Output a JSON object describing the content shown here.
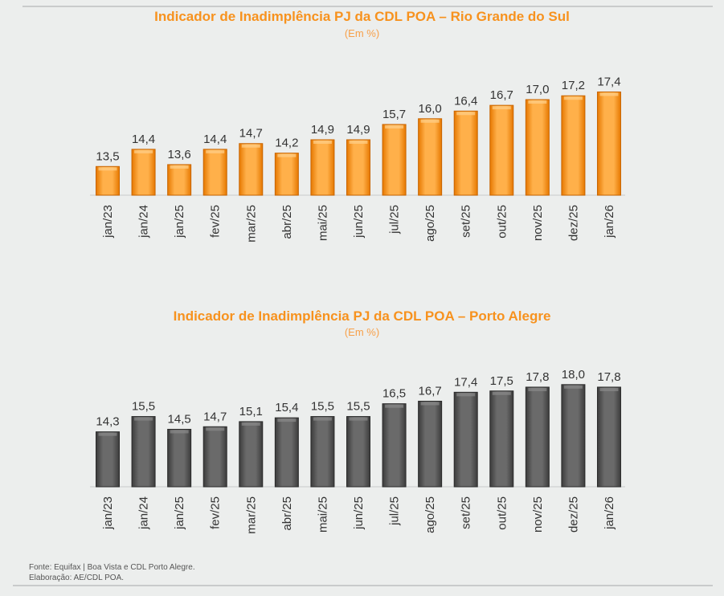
{
  "chart_data": [
    {
      "type": "bar",
      "title": "Indicador de Inadimplência PJ da CDL POA – Rio Grande do Sul",
      "subtitle": "(Em %)",
      "categories": [
        "jan/23",
        "jan/24",
        "jan/25",
        "fev/25",
        "mar/25",
        "abr/25",
        "mai/25",
        "jun/25",
        "jul/25",
        "ago/25",
        "set/25",
        "out/25",
        "nov/25",
        "dez/25",
        "jan/26"
      ],
      "values": [
        13.5,
        14.4,
        13.6,
        14.4,
        14.7,
        14.2,
        14.9,
        14.9,
        15.7,
        16.0,
        16.4,
        16.7,
        17.0,
        17.2,
        17.4
      ],
      "value_labels": [
        "13,5",
        "14,4",
        "13,6",
        "14,4",
        "14,7",
        "14,2",
        "14,9",
        "14,9",
        "15,7",
        "16,0",
        "16,4",
        "16,7",
        "17,0",
        "17,2",
        "17,4"
      ],
      "ylim": [
        12,
        18
      ],
      "grid": false,
      "color": "#f7921e"
    },
    {
      "type": "bar",
      "title": "Indicador de Inadimplência PJ da CDL POA – Porto Alegre",
      "subtitle": "(Em %)",
      "categories": [
        "jan/23",
        "jan/24",
        "jan/25",
        "fev/25",
        "mar/25",
        "abr/25",
        "mai/25",
        "jun/25",
        "jul/25",
        "ago/25",
        "set/25",
        "out/25",
        "nov/25",
        "dez/25",
        "jan/26"
      ],
      "values": [
        14.3,
        15.5,
        14.5,
        14.7,
        15.1,
        15.4,
        15.5,
        15.5,
        16.5,
        16.7,
        17.4,
        17.5,
        17.8,
        18.0,
        17.8
      ],
      "value_labels": [
        "14,3",
        "15,5",
        "14,5",
        "14,7",
        "15,1",
        "15,4",
        "15,5",
        "15,5",
        "16,5",
        "16,7",
        "17,4",
        "17,5",
        "17,8",
        "18,0",
        "17,8"
      ],
      "ylim": [
        10,
        19
      ],
      "grid": false,
      "color": "#4a4a4a"
    }
  ],
  "footer": {
    "source": "Fonte: Equifax | Boa Vista e CDL Porto Alegre.",
    "credit": "Elaboração: AE/CDL POA."
  }
}
